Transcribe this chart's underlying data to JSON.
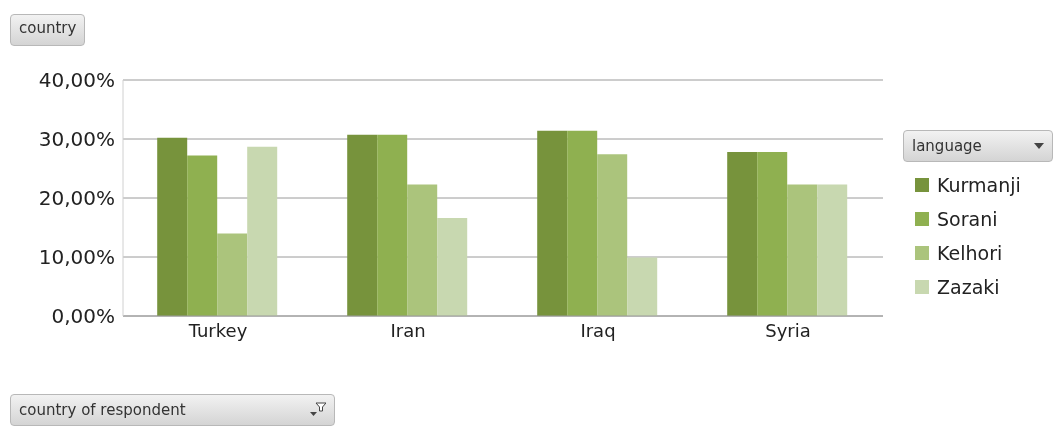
{
  "chart_data": {
    "type": "bar",
    "title": "country",
    "xlabel": "country of respondent",
    "legend_title": "language",
    "categories": [
      "Turkey",
      "Iran",
      "Iraq",
      "Syria"
    ],
    "series": [
      {
        "name": "Kurmanji",
        "color": "#77933c",
        "values": [
          30.2,
          30.7,
          31.4,
          27.8
        ]
      },
      {
        "name": "Sorani",
        "color": "#8fb050",
        "values": [
          27.2,
          30.7,
          31.4,
          27.8
        ]
      },
      {
        "name": "Kelhori",
        "color": "#abc47c",
        "values": [
          14.0,
          22.3,
          27.4,
          22.3
        ]
      },
      {
        "name": "Zazaki",
        "color": "#c8d8b0",
        "values": [
          28.7,
          16.6,
          9.9,
          22.3
        ]
      }
    ],
    "ylim": [
      0,
      40
    ],
    "yticks": [
      {
        "value": 0,
        "label": "0,00%"
      },
      {
        "value": 10,
        "label": "10,00%"
      },
      {
        "value": 20,
        "label": "20,00%"
      },
      {
        "value": 30,
        "label": "30,00%"
      },
      {
        "value": 40,
        "label": "40,00%"
      }
    ],
    "grid": "y",
    "legend": "right"
  }
}
